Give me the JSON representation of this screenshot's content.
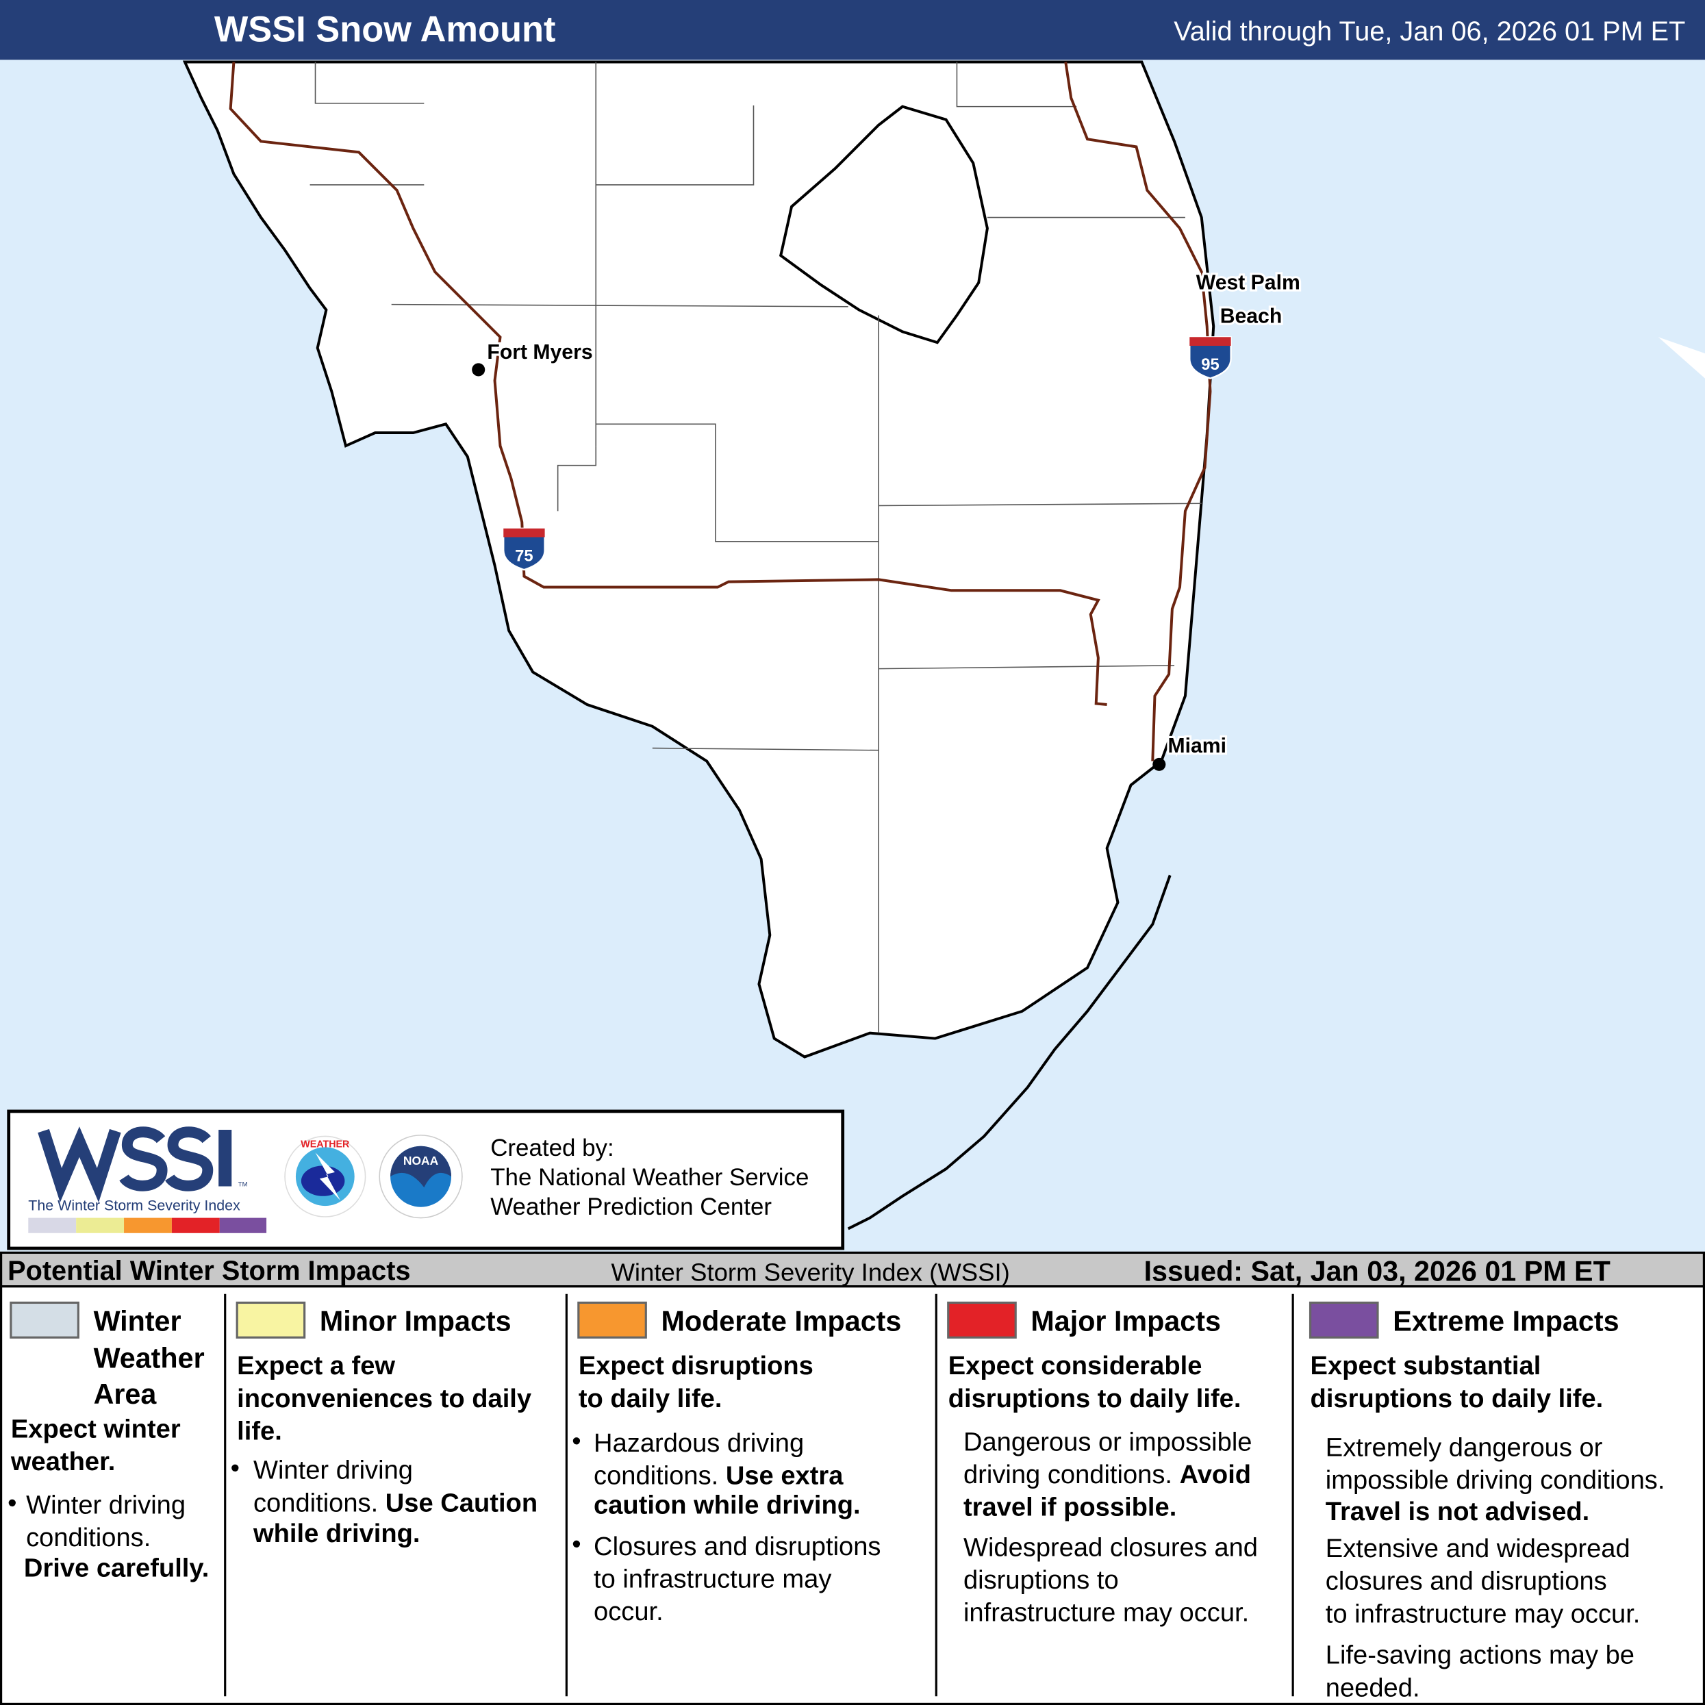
{
  "header": {
    "title": "WSSI Snow Amount",
    "valid": "Valid through Tue, Jan 06, 2026 01 PM ET",
    "bg_color": "#253f78"
  },
  "map": {
    "water_color": "#dcedfb",
    "land_color": "#ffffff",
    "cities": [
      {
        "name": "Fort Myers"
      },
      {
        "name": "West Palm"
      },
      {
        "name": "Beach"
      },
      {
        "name": "Miami"
      }
    ],
    "interstates": [
      {
        "number": "75"
      },
      {
        "number": "95"
      }
    ]
  },
  "credits": {
    "logo_text": "WSSI",
    "logo_tm": "TM",
    "logo_subtitle": "The Winter Storm Severity Index",
    "nws_seal": "NATIONAL WEATHER SERVICE",
    "noaa_seal": "NOAA",
    "created_by": "Created by:",
    "org1": "The National Weather Service",
    "org2": "Weather Prediction Center",
    "scale_colors": [
      "#d8d8e6",
      "#ecec94",
      "#f7972f",
      "#e32227",
      "#7a4f9f"
    ]
  },
  "legend": {
    "title": "Potential Winter Storm Impacts",
    "subtitle": "Winter Storm Severity Index (WSSI)",
    "issued": "Issued: Sat, Jan 03, 2026 01 PM ET",
    "columns": [
      {
        "color": "#d4dee6",
        "title": [
          "Winter",
          "Weather",
          "Area"
        ],
        "summary": [
          "Expect winter",
          "weather."
        ],
        "details": [
          "Winter driving",
          "conditions.",
          "Drive carefully."
        ]
      },
      {
        "color": "#f8f4a2",
        "title": [
          "Minor Impacts"
        ],
        "summary": [
          "Expect a few",
          "inconveniences to daily",
          "life."
        ],
        "details": [
          "Winter driving",
          "conditions. ",
          "Use Caution",
          "while driving."
        ]
      },
      {
        "color": "#f7972f",
        "title": [
          "Moderate Impacts"
        ],
        "summary": [
          "Expect disruptions",
          "to daily life."
        ],
        "details": [
          "Hazardous driving",
          "conditions. ",
          "Use extra",
          "caution while driving.",
          "Closures and disruptions",
          "to infrastructure may",
          "occur."
        ]
      },
      {
        "color": "#e32227",
        "title": [
          "Major Impacts"
        ],
        "summary": [
          "Expect considerable",
          "disruptions to daily life."
        ],
        "details": [
          "Dangerous or impossible",
          "driving conditions. ",
          "Avoid",
          "travel if possible.",
          "Widespread closures and",
          "disruptions to",
          "infrastructure may occur."
        ]
      },
      {
        "color": "#7a4f9f",
        "title": [
          "Extreme Impacts"
        ],
        "summary": [
          "Expect substantial",
          "disruptions to daily life."
        ],
        "details": [
          "Extremely dangerous or",
          "impossible driving conditions.",
          "Travel is not advised.",
          "Extensive and widespread",
          "closures and disruptions",
          "to infrastructure may occur.",
          "Life-saving actions may be",
          "needed."
        ]
      }
    ]
  }
}
